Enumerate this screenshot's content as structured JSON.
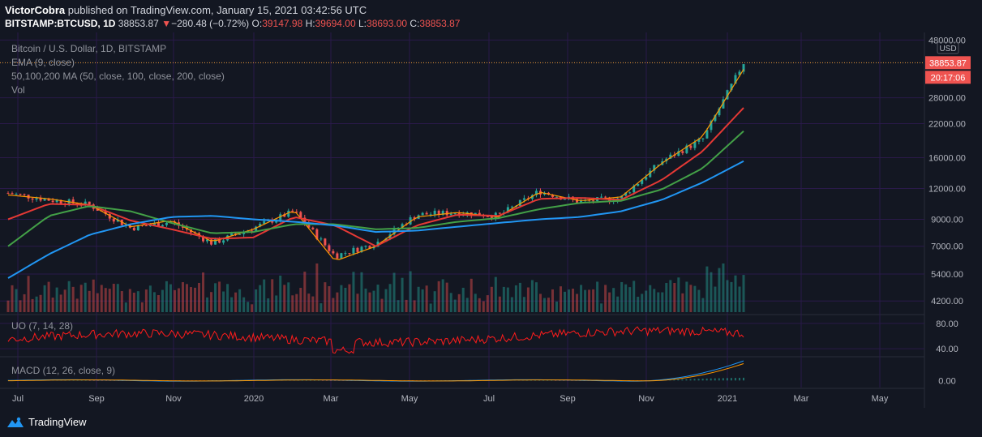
{
  "header": {
    "author": "VictorCobra",
    "published_text": "published on TradingView.com, January 15, 2021 03:42:56 UTC",
    "symbol": "BITSTAMP:BTCUSD, 1D",
    "last": "38853.87",
    "change_arrow": "▼",
    "change": "−280.48 (−0.72%)",
    "open_label": "O:",
    "open": "39147.98",
    "high_label": "H:",
    "high": "39694.00",
    "low_label": "L:",
    "low": "38693.00",
    "close_label": "C:",
    "close": "38853.87"
  },
  "legend": {
    "title": "Bitcoin / U.S. Dollar, 1D, BITSTAMP",
    "ema": "EMA (9, close)",
    "ma": "50,100,200 MA (50, close, 100, close, 200, close)",
    "vol": "Vol",
    "uo": "UO (7, 14, 28)",
    "macd": "MACD (12, 26, close, 9)"
  },
  "price_axis": {
    "currency": "USD",
    "last_price_label": "38853.87",
    "countdown": "20:17:06",
    "ticks": [
      "48000.00",
      "38853.87",
      "28000.00",
      "22000.00",
      "16000.00",
      "12000.00",
      "9000.00",
      "7000.00",
      "5400.00",
      "4200.00"
    ]
  },
  "uo_axis": {
    "ticks": [
      "80.00",
      "40.00"
    ]
  },
  "macd_axis": {
    "ticks": [
      "0.00"
    ]
  },
  "time_axis": {
    "labels": [
      "Jul",
      "Sep",
      "Nov",
      "2020",
      "Mar",
      "May",
      "Jul",
      "Sep",
      "Nov",
      "2021",
      "Mar",
      "May"
    ]
  },
  "colors": {
    "background": "#131722",
    "grid": "#2a1a4a",
    "up": "#26a69a",
    "down": "#ef5350",
    "ema": "#ff9800",
    "ma50": "#e53935",
    "ma100": "#43a047",
    "ma200": "#2196f3",
    "uo": "#ff1c1c",
    "macd": "#2196f3",
    "signal": "#ff9800",
    "price_line": "#ef9a3a",
    "label_bg": "#ef5350"
  },
  "chart_data": {
    "type": "line",
    "title": "Bitcoin / U.S. Dollar, 1D, BITSTAMP",
    "yscale": "log",
    "ylim": [
      3900,
      50000
    ],
    "x": [
      "2019-07",
      "2019-08",
      "2019-09",
      "2019-10",
      "2019-11",
      "2019-12",
      "2020-01",
      "2020-02",
      "2020-03",
      "2020-04",
      "2020-05",
      "2020-06",
      "2020-07",
      "2020-08",
      "2020-09",
      "2020-10",
      "2020-11",
      "2020-12",
      "2021-01"
    ],
    "series": [
      {
        "name": "BTCUSD",
        "values": [
          11500,
          10800,
          10300,
          8300,
          8800,
          7200,
          8300,
          9700,
          6400,
          7200,
          9400,
          9600,
          9300,
          11700,
          10600,
          11000,
          15500,
          19000,
          38853
        ]
      },
      {
        "name": "EMA (9, close)",
        "values": [
          11300,
          10900,
          10300,
          8400,
          8900,
          7300,
          8200,
          9800,
          6100,
          7000,
          9200,
          9600,
          9200,
          11600,
          10700,
          11100,
          15200,
          19500,
          36500
        ]
      },
      {
        "name": "MA 50",
        "values": [
          9000,
          10400,
          10300,
          8900,
          8200,
          7500,
          7600,
          9200,
          8500,
          7000,
          8500,
          9400,
          9300,
          10900,
          11000,
          10800,
          13000,
          17000,
          25500
        ]
      },
      {
        "name": "MA 100",
        "values": [
          7000,
          9300,
          10200,
          9700,
          8700,
          7900,
          8000,
          8600,
          8600,
          8200,
          8300,
          8800,
          9100,
          9900,
          10500,
          10700,
          11900,
          14500,
          20500
        ]
      },
      {
        "name": "MA 200",
        "values": [
          5200,
          6500,
          7800,
          8600,
          9200,
          9300,
          9000,
          8800,
          8500,
          8000,
          8100,
          8400,
          8700,
          9000,
          9200,
          9700,
          10800,
          12700,
          15500
        ]
      }
    ],
    "uo_range": [
      30,
      90
    ],
    "macd_range": [
      -1500,
      4500
    ]
  }
}
